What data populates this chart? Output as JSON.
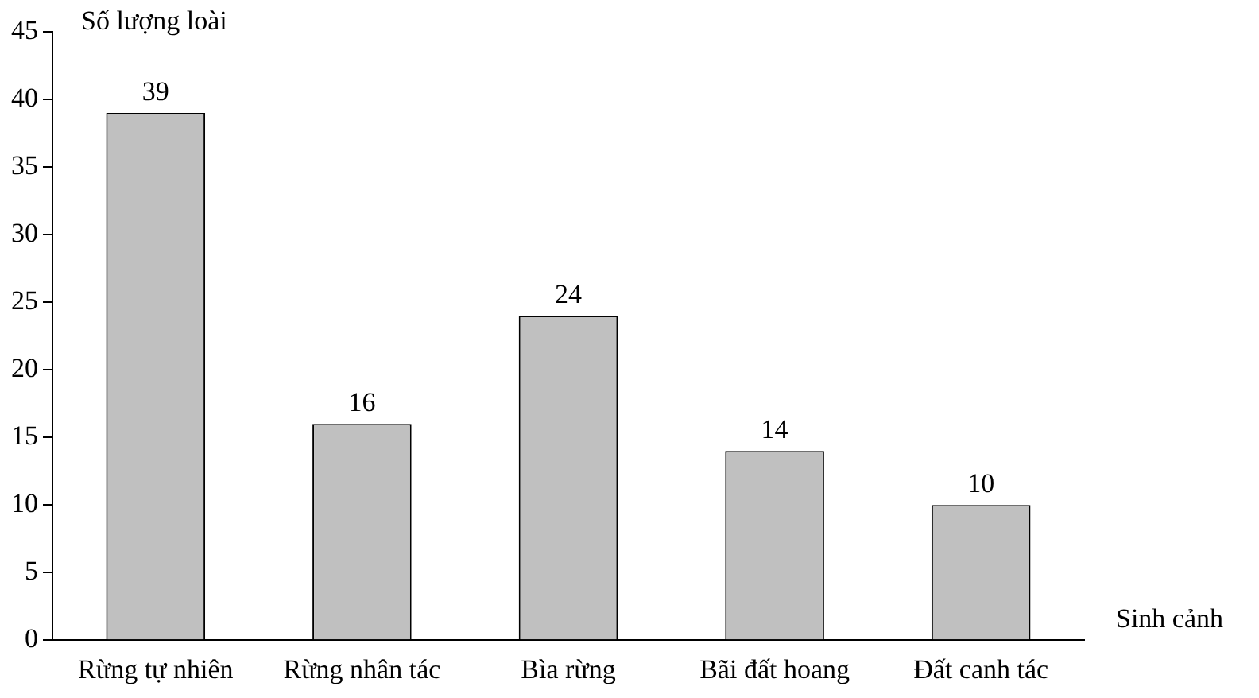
{
  "chart_data": {
    "type": "bar",
    "ylabel": "Số lượng loài",
    "xlabel": "Sinh cảnh",
    "categories": [
      "Rừng tự nhiên",
      "Rừng nhân tác",
      "Bìa rừng",
      "Bãi đất hoang",
      "Đất canh tác"
    ],
    "values": [
      39,
      16,
      24,
      14,
      10
    ],
    "color": "#c0c0c0",
    "ylim": [
      0,
      45
    ],
    "yticks": [
      0,
      5,
      10,
      15,
      20,
      25,
      30,
      35,
      40,
      45
    ],
    "grid": false,
    "legend": false,
    "data_labels": true
  }
}
